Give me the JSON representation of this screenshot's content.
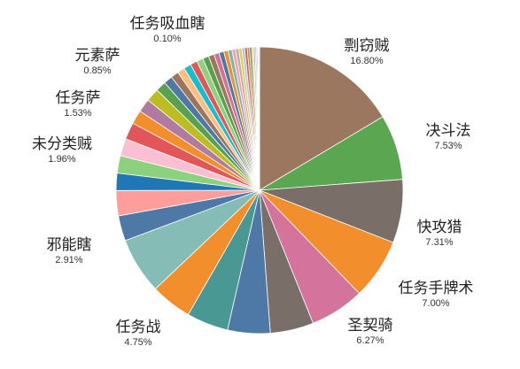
{
  "chart_data": {
    "type": "pie",
    "title": "",
    "slices": [
      {
        "label": "剽窃贼",
        "value": 16.8,
        "pct_text": "16.80%",
        "color": "#9b7760"
      },
      {
        "label": "决斗法",
        "value": 7.53,
        "pct_text": "7.53%",
        "color": "#5ba650"
      },
      {
        "label": "快攻猎",
        "value": 7.31,
        "pct_text": "7.31%",
        "color": "#7a6e68"
      },
      {
        "label": "任务手牌术",
        "value": 7.0,
        "pct_text": "7.00%",
        "color": "#f28e2b"
      },
      {
        "label": "圣契骑",
        "value": 6.27,
        "pct_text": "6.27%",
        "color": "#d4749c"
      },
      {
        "label": "",
        "value": 5.0,
        "color": "#7a6e68"
      },
      {
        "label": "",
        "value": 4.9,
        "color": "#4e79a7"
      },
      {
        "label": "",
        "value": 4.8,
        "color": "#499894"
      },
      {
        "label": "任务战",
        "value": 4.75,
        "pct_text": "4.75%",
        "color": "#f28e2b"
      },
      {
        "label": "",
        "value": 6.5,
        "color": "#86bcb6"
      },
      {
        "label": "邪能瞎",
        "value": 2.91,
        "pct_text": "2.91%",
        "color": "#4e79a7"
      },
      {
        "label": "",
        "value": 2.9,
        "color": "#ff9d9a"
      },
      {
        "label": "",
        "value": 2.0,
        "color": "#1f77b4"
      },
      {
        "label": "",
        "value": 2.0,
        "color": "#8cd17d"
      },
      {
        "label": "",
        "value": 2.0,
        "color": "#fabfd2"
      },
      {
        "label": "未分类贼",
        "value": 1.96,
        "pct_text": "1.96%",
        "color": "#e15759"
      },
      {
        "label": "",
        "value": 1.6,
        "color": "#f28e2b"
      },
      {
        "label": "",
        "value": 1.55,
        "color": "#b07aa1"
      },
      {
        "label": "任务萨",
        "value": 1.53,
        "pct_text": "1.53%",
        "color": "#bcbd22"
      },
      {
        "label": "",
        "value": 1.2,
        "color": "#59a14f"
      },
      {
        "label": "",
        "value": 1.0,
        "color": "#4e79a7"
      },
      {
        "label": "",
        "value": 0.9,
        "color": "#9c755f"
      },
      {
        "label": "元素萨",
        "value": 0.85,
        "pct_text": "0.85%",
        "color": "#ffbe7d"
      },
      {
        "label": "",
        "value": 0.85,
        "color": "#17becf"
      },
      {
        "label": "",
        "value": 0.8,
        "color": "#e15759"
      },
      {
        "label": "",
        "value": 0.75,
        "color": "#8cd17d"
      },
      {
        "label": "",
        "value": 0.7,
        "color": "#59a14f"
      },
      {
        "label": "",
        "value": 0.65,
        "color": "#9d7660"
      },
      {
        "label": "",
        "value": 0.6,
        "color": "#d37295"
      },
      {
        "label": "",
        "value": 0.55,
        "color": "#4e79a7"
      },
      {
        "label": "",
        "value": 0.5,
        "color": "#f28e2b"
      },
      {
        "label": "",
        "value": 0.45,
        "color": "#76b7b2"
      },
      {
        "label": "",
        "value": 0.4,
        "color": "#ff9da7"
      },
      {
        "label": "",
        "value": 0.38,
        "color": "#bab0ac"
      },
      {
        "label": "",
        "value": 0.35,
        "color": "#edc948"
      },
      {
        "label": "",
        "value": 0.32,
        "color": "#a0cbe8"
      },
      {
        "label": "",
        "value": 0.3,
        "color": "#e15759"
      },
      {
        "label": "",
        "value": 0.27,
        "color": "#b6992d"
      },
      {
        "label": "",
        "value": 0.24,
        "color": "#79706e"
      },
      {
        "label": "",
        "value": 0.21,
        "color": "#f1ce63"
      },
      {
        "label": "",
        "value": 0.18,
        "color": "#86bcb6"
      },
      {
        "label": "",
        "value": 0.15,
        "color": "#d4a6c8"
      },
      {
        "label": "",
        "value": 0.12,
        "color": "#9467bd"
      },
      {
        "label": "任务吸血瞎",
        "value": 0.1,
        "pct_text": "0.10%",
        "color": "#bcbd22"
      },
      {
        "label": "",
        "value": 0.08,
        "color": "#f7b6d2"
      },
      {
        "label": "",
        "value": 0.06,
        "color": "#c49c94"
      }
    ]
  }
}
